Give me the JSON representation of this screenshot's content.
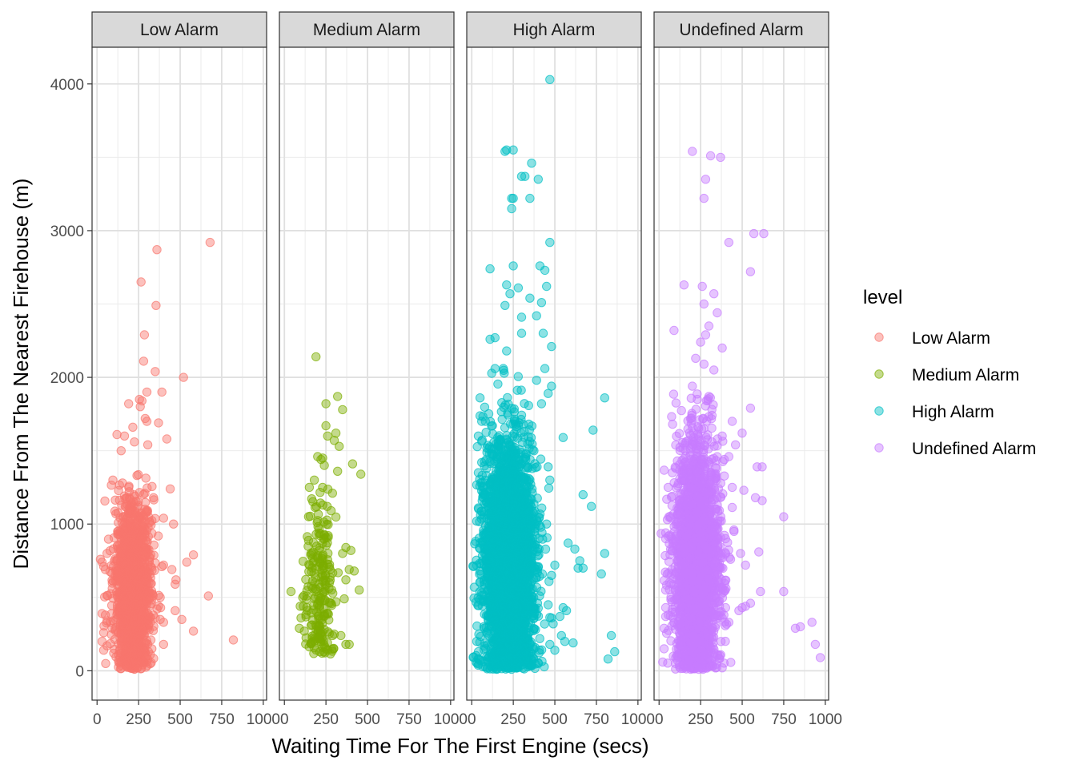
{
  "chart_data": {
    "type": "scatter",
    "facets": [
      "Low Alarm",
      "Medium Alarm",
      "High Alarm",
      "Undefined Alarm"
    ],
    "xlabel": "Waiting Time For The First Engine (secs)",
    "ylabel": "Distance From The Nearest Firehouse (m)",
    "xlim": [
      -30,
      1020
    ],
    "ylim": [
      -200,
      4250
    ],
    "x_ticks": [
      0,
      250,
      500,
      750,
      1000
    ],
    "x_tick_labels": [
      "0",
      "250",
      "500",
      "750",
      "1000"
    ],
    "y_ticks": [
      0,
      1000,
      2000,
      3000,
      4000
    ],
    "y_tick_labels": [
      "0",
      "1000",
      "2000",
      "3000",
      "4000"
    ],
    "grid": true,
    "legend": {
      "title": "level",
      "placement": "right",
      "entries": [
        "Low Alarm",
        "Medium Alarm",
        "High Alarm",
        "Undefined Alarm"
      ]
    },
    "series": [
      {
        "name": "Low Alarm",
        "color": "#F8766D",
        "points": [
          [
            680,
            2920
          ],
          [
            360,
            2870
          ],
          [
            265,
            2650
          ],
          [
            355,
            2490
          ],
          [
            285,
            2290
          ],
          [
            280,
            2110
          ],
          [
            350,
            2040
          ],
          [
            520,
            2000
          ],
          [
            300,
            1900
          ],
          [
            390,
            1900
          ],
          [
            255,
            1850
          ],
          [
            270,
            1840
          ],
          [
            190,
            1820
          ],
          [
            260,
            1800
          ],
          [
            290,
            1720
          ],
          [
            300,
            1700
          ],
          [
            370,
            1690
          ],
          [
            215,
            1660
          ],
          [
            120,
            1610
          ],
          [
            165,
            1600
          ],
          [
            420,
            1580
          ],
          [
            225,
            1560
          ],
          [
            305,
            1540
          ],
          [
            145,
            1500
          ],
          [
            95,
            1300
          ],
          [
            440,
            1240
          ],
          [
            340,
            1180
          ],
          [
            460,
            1000
          ],
          [
            310,
            1050
          ],
          [
            400,
            1040
          ],
          [
            60,
            800
          ],
          [
            20,
            760
          ],
          [
            30,
            740
          ],
          [
            40,
            710
          ],
          [
            50,
            690
          ],
          [
            400,
            720
          ],
          [
            390,
            710
          ],
          [
            450,
            690
          ],
          [
            580,
            790
          ],
          [
            540,
            740
          ],
          [
            475,
            620
          ],
          [
            470,
            590
          ],
          [
            670,
            510
          ],
          [
            380,
            500
          ],
          [
            470,
            410
          ],
          [
            380,
            350
          ],
          [
            400,
            330
          ],
          [
            350,
            360
          ],
          [
            510,
            350
          ],
          [
            580,
            270
          ],
          [
            820,
            210
          ],
          [
            400,
            180
          ],
          [
            30,
            390
          ],
          [
            50,
            380
          ],
          [
            60,
            340
          ],
          [
            80,
            330
          ],
          [
            40,
            260
          ],
          [
            30,
            200
          ],
          [
            60,
            170
          ],
          [
            40,
            140
          ],
          [
            100,
            120
          ],
          [
            200,
            170
          ],
          [
            330,
            150
          ],
          [
            320,
            110
          ]
        ],
        "cluster": {
          "x_center": 215,
          "x_spread": 55,
          "y_center": 560,
          "y_spread": 300,
          "y_min": 10,
          "y_max": 1350,
          "count": 1400
        }
      },
      {
        "name": "Medium Alarm",
        "color": "#7CAE00",
        "points": [
          [
            190,
            2140
          ],
          [
            320,
            1870
          ],
          [
            250,
            1820
          ],
          [
            350,
            1780
          ],
          [
            250,
            1670
          ],
          [
            310,
            1620
          ],
          [
            300,
            1570
          ],
          [
            260,
            1600
          ],
          [
            330,
            1530
          ],
          [
            200,
            1460
          ],
          [
            230,
            1450
          ],
          [
            220,
            1440
          ],
          [
            240,
            1400
          ],
          [
            410,
            1410
          ],
          [
            460,
            1340
          ],
          [
            320,
            1360
          ],
          [
            150,
            1250
          ],
          [
            180,
            1300
          ],
          [
            230,
            1250
          ],
          [
            370,
            840
          ],
          [
            400,
            820
          ],
          [
            350,
            800
          ],
          [
            390,
            690
          ],
          [
            420,
            680
          ],
          [
            370,
            620
          ],
          [
            450,
            550
          ],
          [
            360,
            490
          ],
          [
            310,
            470
          ],
          [
            40,
            540
          ],
          [
            110,
            500
          ],
          [
            95,
            440
          ],
          [
            100,
            360
          ],
          [
            90,
            290
          ],
          [
            120,
            270
          ],
          [
            340,
            240
          ],
          [
            370,
            180
          ],
          [
            390,
            180
          ],
          [
            300,
            250
          ]
        ],
        "cluster": {
          "x_center": 210,
          "x_spread": 42,
          "y_center": 560,
          "y_spread": 330,
          "y_min": 100,
          "y_max": 1250,
          "count": 220
        }
      },
      {
        "name": "High Alarm",
        "color": "#00BFC4",
        "points": [
          [
            470,
            4030
          ],
          [
            200,
            3540
          ],
          [
            210,
            3550
          ],
          [
            250,
            3550
          ],
          [
            360,
            3460
          ],
          [
            300,
            3370
          ],
          [
            320,
            3370
          ],
          [
            400,
            3350
          ],
          [
            240,
            3220
          ],
          [
            250,
            3220
          ],
          [
            350,
            3220
          ],
          [
            240,
            3150
          ],
          [
            470,
            2920
          ],
          [
            110,
            2740
          ],
          [
            250,
            2760
          ],
          [
            410,
            2760
          ],
          [
            440,
            2730
          ],
          [
            210,
            2630
          ],
          [
            280,
            2610
          ],
          [
            450,
            2620
          ],
          [
            230,
            2570
          ],
          [
            350,
            2540
          ],
          [
            420,
            2510
          ],
          [
            390,
            2420
          ],
          [
            200,
            2490
          ],
          [
            300,
            2410
          ],
          [
            110,
            2260
          ],
          [
            140,
            2270
          ],
          [
            300,
            2300
          ],
          [
            430,
            2300
          ],
          [
            210,
            2180
          ],
          [
            480,
            2210
          ],
          [
            140,
            2060
          ],
          [
            190,
            2060
          ],
          [
            440,
            2060
          ],
          [
            390,
            1980
          ],
          [
            480,
            1940
          ],
          [
            460,
            1890
          ],
          [
            50,
            1860
          ],
          [
            800,
            1860
          ],
          [
            420,
            1820
          ],
          [
            60,
            1700
          ],
          [
            730,
            1640
          ],
          [
            40,
            1600
          ],
          [
            550,
            1590
          ],
          [
            60,
            1420
          ],
          [
            40,
            1350
          ],
          [
            460,
            1390
          ],
          [
            470,
            1300
          ],
          [
            70,
            1200
          ],
          [
            670,
            1200
          ],
          [
            720,
            1120
          ],
          [
            40,
            1110
          ],
          [
            30,
            1020
          ],
          [
            450,
            1000
          ],
          [
            580,
            870
          ],
          [
            620,
            830
          ],
          [
            650,
            750
          ],
          [
            640,
            700
          ],
          [
            670,
            700
          ],
          [
            800,
            800
          ],
          [
            780,
            660
          ],
          [
            500,
            720
          ],
          [
            480,
            650
          ],
          [
            460,
            450
          ],
          [
            550,
            430
          ],
          [
            570,
            410
          ],
          [
            530,
            370
          ],
          [
            480,
            360
          ],
          [
            490,
            320
          ],
          [
            540,
            240
          ],
          [
            560,
            200
          ],
          [
            610,
            190
          ],
          [
            840,
            240
          ],
          [
            860,
            130
          ],
          [
            820,
            80
          ],
          [
            500,
            140
          ],
          [
            470,
            180
          ],
          [
            30,
            200
          ],
          [
            40,
            130
          ],
          [
            50,
            70
          ]
        ],
        "cluster": {
          "x_center": 225,
          "x_spread": 75,
          "y_center": 700,
          "y_spread": 430,
          "y_min": 10,
          "y_max": 2150,
          "count": 3200
        }
      },
      {
        "name": "Undefined Alarm",
        "color": "#C77CFF",
        "points": [
          [
            200,
            3540
          ],
          [
            310,
            3510
          ],
          [
            370,
            3500
          ],
          [
            280,
            3350
          ],
          [
            270,
            3220
          ],
          [
            420,
            2920
          ],
          [
            570,
            2980
          ],
          [
            630,
            2980
          ],
          [
            550,
            2720
          ],
          [
            150,
            2630
          ],
          [
            260,
            2620
          ],
          [
            330,
            2570
          ],
          [
            270,
            2500
          ],
          [
            350,
            2440
          ],
          [
            300,
            2350
          ],
          [
            90,
            2320
          ],
          [
            280,
            2290
          ],
          [
            250,
            2240
          ],
          [
            380,
            2200
          ],
          [
            220,
            2130
          ],
          [
            270,
            2090
          ],
          [
            330,
            2050
          ],
          [
            200,
            1940
          ],
          [
            300,
            1870
          ],
          [
            230,
            1850
          ],
          [
            440,
            1700
          ],
          [
            550,
            1790
          ],
          [
            500,
            1620
          ],
          [
            460,
            1540
          ],
          [
            380,
            1600
          ],
          [
            420,
            1460
          ],
          [
            110,
            1430
          ],
          [
            100,
            1380
          ],
          [
            80,
            1350
          ],
          [
            80,
            1190
          ],
          [
            50,
            1030
          ],
          [
            40,
            940
          ],
          [
            40,
            900
          ],
          [
            440,
            1250
          ],
          [
            510,
            1230
          ],
          [
            580,
            1180
          ],
          [
            620,
            1160
          ],
          [
            590,
            1390
          ],
          [
            620,
            1390
          ],
          [
            750,
            1050
          ],
          [
            450,
            960
          ],
          [
            400,
            900
          ],
          [
            490,
            800
          ],
          [
            430,
            760
          ],
          [
            520,
            720
          ],
          [
            600,
            810
          ],
          [
            610,
            540
          ],
          [
            750,
            540
          ],
          [
            550,
            460
          ],
          [
            520,
            440
          ],
          [
            500,
            430
          ],
          [
            480,
            410
          ],
          [
            400,
            430
          ],
          [
            390,
            380
          ],
          [
            420,
            330
          ],
          [
            380,
            360
          ],
          [
            40,
            550
          ],
          [
            40,
            430
          ],
          [
            40,
            370
          ],
          [
            30,
            290
          ],
          [
            30,
            150
          ],
          [
            850,
            300
          ],
          [
            820,
            290
          ],
          [
            920,
            330
          ],
          [
            970,
            90
          ],
          [
            940,
            180
          ],
          [
            100,
            90
          ],
          [
            380,
            20
          ]
        ],
        "cluster": {
          "x_center": 225,
          "x_spread": 68,
          "y_center": 720,
          "y_spread": 410,
          "y_min": 10,
          "y_max": 1950,
          "count": 2600
        }
      }
    ]
  }
}
